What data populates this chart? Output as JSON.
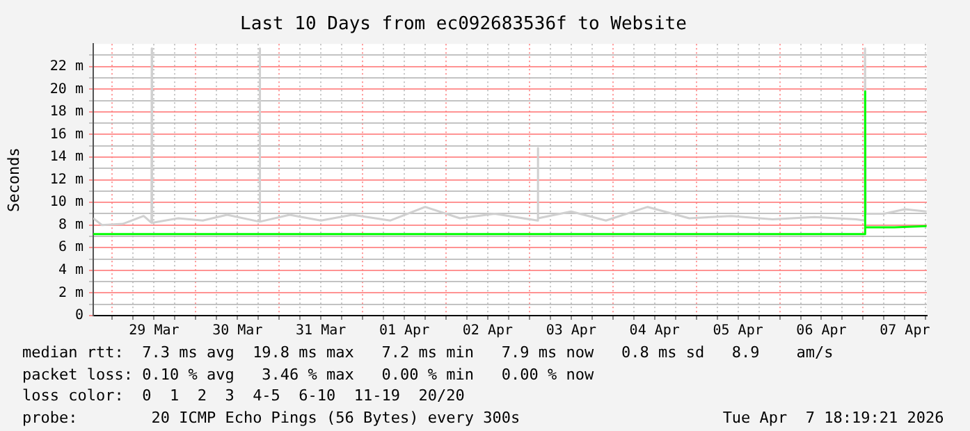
{
  "chart_data": {
    "type": "line",
    "title": "Last 10 Days from ec092683536f to Website",
    "ylabel": "Seconds",
    "xlim": [
      "2026-03-28T18:30",
      "2026-04-07T18:20"
    ],
    "xticks": [
      {
        "value": "2026-03-29T00:00",
        "label": null
      },
      {
        "value": "2026-03-29T06:00",
        "label": null
      },
      {
        "value": "2026-03-29T12:00",
        "label": "29 Mar"
      },
      {
        "value": "2026-03-29T18:00",
        "label": null
      },
      {
        "value": "2026-03-30T00:00",
        "label": null
      },
      {
        "value": "2026-03-30T06:00",
        "label": null
      },
      {
        "value": "2026-03-30T12:00",
        "label": "30 Mar"
      },
      {
        "value": "2026-03-30T18:00",
        "label": null
      },
      {
        "value": "2026-03-31T00:00",
        "label": null
      },
      {
        "value": "2026-03-31T06:00",
        "label": null
      },
      {
        "value": "2026-03-31T12:00",
        "label": "31 Mar"
      },
      {
        "value": "2026-03-31T18:00",
        "label": null
      },
      {
        "value": "2026-04-01T00:00",
        "label": null
      },
      {
        "value": "2026-04-01T06:00",
        "label": null
      },
      {
        "value": "2026-04-01T12:00",
        "label": "01 Apr"
      },
      {
        "value": "2026-04-01T18:00",
        "label": null
      },
      {
        "value": "2026-04-02T00:00",
        "label": null
      },
      {
        "value": "2026-04-02T06:00",
        "label": null
      },
      {
        "value": "2026-04-02T12:00",
        "label": "02 Apr"
      },
      {
        "value": "2026-04-02T18:00",
        "label": null
      },
      {
        "value": "2026-04-03T00:00",
        "label": null
      },
      {
        "value": "2026-04-03T06:00",
        "label": null
      },
      {
        "value": "2026-04-03T12:00",
        "label": "03 Apr"
      },
      {
        "value": "2026-04-03T18:00",
        "label": null
      },
      {
        "value": "2026-04-04T00:00",
        "label": null
      },
      {
        "value": "2026-04-04T06:00",
        "label": null
      },
      {
        "value": "2026-04-04T12:00",
        "label": "04 Apr"
      },
      {
        "value": "2026-04-04T18:00",
        "label": null
      },
      {
        "value": "2026-04-05T00:00",
        "label": null
      },
      {
        "value": "2026-04-05T06:00",
        "label": null
      },
      {
        "value": "2026-04-05T12:00",
        "label": "05 Apr"
      },
      {
        "value": "2026-04-05T18:00",
        "label": null
      },
      {
        "value": "2026-04-06T00:00",
        "label": null
      },
      {
        "value": "2026-04-06T06:00",
        "label": null
      },
      {
        "value": "2026-04-06T12:00",
        "label": "06 Apr"
      },
      {
        "value": "2026-04-06T18:00",
        "label": null
      },
      {
        "value": "2026-04-07T00:00",
        "label": null
      },
      {
        "value": "2026-04-07T06:00",
        "label": null
      },
      {
        "value": "2026-04-07T12:00",
        "label": "07 Apr"
      },
      {
        "value": "2026-04-07T18:00",
        "label": null
      }
    ],
    "ylim": [
      0,
      24
    ],
    "yticks": [
      {
        "value": 0,
        "label": "0"
      },
      {
        "value": 1,
        "label": null
      },
      {
        "value": 2,
        "label": "2 m"
      },
      {
        "value": 3,
        "label": null
      },
      {
        "value": 4,
        "label": "4 m"
      },
      {
        "value": 5,
        "label": null
      },
      {
        "value": 6,
        "label": "6 m"
      },
      {
        "value": 7,
        "label": null
      },
      {
        "value": 8,
        "label": "8 m"
      },
      {
        "value": 9,
        "label": null
      },
      {
        "value": 10,
        "label": "10 m"
      },
      {
        "value": 11,
        "label": null
      },
      {
        "value": 12,
        "label": "12 m"
      },
      {
        "value": 13,
        "label": null
      },
      {
        "value": 14,
        "label": "14 m"
      },
      {
        "value": 15,
        "label": null
      },
      {
        "value": 16,
        "label": "16 m"
      },
      {
        "value": 17,
        "label": null
      },
      {
        "value": 18,
        "label": "18 m"
      },
      {
        "value": 19,
        "label": null
      },
      {
        "value": 20,
        "label": "20 m"
      },
      {
        "value": 21,
        "label": null
      },
      {
        "value": 22,
        "label": "22 m"
      },
      {
        "value": 23,
        "label": null
      }
    ],
    "grid": true,
    "legend": false,
    "marker": "none",
    "line_style": "solid",
    "series": [
      {
        "color": "#d0d0d0",
        "x": [
          "2026-03-28T18:30",
          "2026-03-28T21:00",
          "2026-03-29T03:00",
          "2026-03-29T09:00",
          "2026-03-29T11:15",
          "2026-03-29T11:20",
          "2026-03-29T11:25",
          "2026-03-29T19:00",
          "2026-03-30T02:00",
          "2026-03-30T09:00",
          "2026-03-30T18:20",
          "2026-03-30T18:25",
          "2026-03-30T18:30",
          "2026-03-31T03:00",
          "2026-03-31T12:00",
          "2026-03-31T21:00",
          "2026-04-01T08:00",
          "2026-04-01T18:00",
          "2026-04-02T04:00",
          "2026-04-02T14:00",
          "2026-04-03T02:20",
          "2026-04-03T02:25",
          "2026-04-03T02:30",
          "2026-04-03T12:00",
          "2026-04-03T22:00",
          "2026-04-04T10:00",
          "2026-04-04T22:00",
          "2026-04-05T10:00",
          "2026-04-05T22:00",
          "2026-04-06T10:00",
          "2026-04-06T22:00",
          "2026-04-07T00:25",
          "2026-04-07T00:30",
          "2026-04-07T00:35",
          "2026-04-07T00:45",
          "2026-04-07T06:00",
          "2026-04-07T12:00",
          "2026-04-07T18:15"
        ],
        "values": [
          8.6,
          8.0,
          8.1,
          8.8,
          8.2,
          23.6,
          8.2,
          8.6,
          8.4,
          8.9,
          8.3,
          23.6,
          8.3,
          8.9,
          8.4,
          8.9,
          8.4,
          9.6,
          8.6,
          9.0,
          8.4,
          14.8,
          8.6,
          9.2,
          8.4,
          9.6,
          8.6,
          8.8,
          8.5,
          8.7,
          8.5,
          8.4,
          23.6,
          23.6,
          9.0,
          9.0,
          9.4,
          9.2
        ]
      },
      {
        "color": "#00ff00",
        "x": [
          "2026-03-28T18:30",
          "2026-03-30T12:00",
          "2026-04-01T12:00",
          "2026-04-03T12:00",
          "2026-04-05T12:00",
          "2026-04-07T00:25",
          "2026-04-07T00:30",
          "2026-04-07T00:40",
          "2026-04-07T09:00",
          "2026-04-07T18:15"
        ],
        "values": [
          7.2,
          7.2,
          7.2,
          7.2,
          7.2,
          7.2,
          19.8,
          7.8,
          7.8,
          7.9
        ]
      }
    ],
    "annotations": [
      "median rtt:  7.3 ms avg  19.8 ms max   7.2 ms min   7.9 ms now   0.8 ms sd   8.9    am/s",
      "packet loss: 0.10 % avg   3.46 % max   0.00 % min   0.00 % now",
      "loss color:  0  1  2  3  4-5  6-10  11-19  20/20",
      "probe:        20 ICMP Echo Pings (56 Bytes) every 300s                      Tue Apr  7 18:19:21 2026"
    ]
  }
}
